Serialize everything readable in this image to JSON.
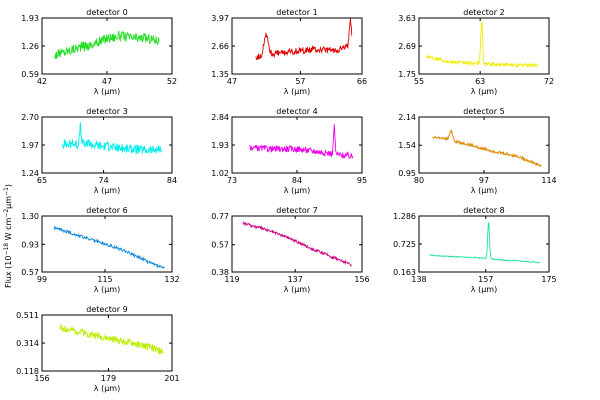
{
  "figure": {
    "ylabel_parts": [
      "Flux (10",
      "−18",
      " W cm",
      "−2",
      "μm",
      "−1",
      ")"
    ]
  },
  "chart_data": [
    {
      "type": "line",
      "title": "detector 0",
      "xlabel": "λ (μm)",
      "xlim": [
        42,
        52
      ],
      "ylim": [
        0.59,
        1.93
      ],
      "xticks": [
        "42",
        "47",
        "52"
      ],
      "yticks": [
        "0.59",
        "1.26",
        "1.93"
      ],
      "color": "#22dd22",
      "x": [
        43.0,
        44.0,
        45.0,
        46.0,
        47.0,
        48.0,
        49.0,
        50.0,
        51.0
      ],
      "y": [
        1.05,
        1.15,
        1.25,
        1.3,
        1.45,
        1.5,
        1.45,
        1.45,
        1.4
      ],
      "noise": 0.12,
      "peaks": []
    },
    {
      "type": "line",
      "title": "detector 1",
      "xlabel": "λ (μm)",
      "xlim": [
        47,
        66
      ],
      "ylim": [
        1.35,
        3.97
      ],
      "xticks": [
        "47",
        "57",
        "66"
      ],
      "yticks": [
        "1.35",
        "2.66",
        "3.97"
      ],
      "color": "#dd0000",
      "x": [
        50.5,
        53.0,
        56.0,
        59.0,
        62.0,
        64.5
      ],
      "y": [
        2.15,
        2.3,
        2.4,
        2.5,
        2.45,
        2.7
      ],
      "noise": 0.15,
      "peaks": [
        {
          "x": 52.0,
          "y": 3.25,
          "w": 0.3
        },
        {
          "x": 64.3,
          "y": 3.85,
          "w": 0.15
        }
      ]
    },
    {
      "type": "line",
      "title": "detector 2",
      "xlabel": "λ (μm)",
      "xlim": [
        55,
        72
      ],
      "ylim": [
        1.75,
        3.63
      ],
      "xticks": [
        "55",
        "63",
        "72"
      ],
      "yticks": [
        "1.75",
        "2.69",
        "3.63"
      ],
      "color": "#eeee00",
      "x": [
        56.0,
        59.0,
        63.0,
        67.0,
        70.5
      ],
      "y": [
        2.35,
        2.15,
        2.1,
        2.05,
        2.05
      ],
      "noise": 0.06,
      "peaks": [
        {
          "x": 63.2,
          "y": 3.55,
          "w": 0.12
        }
      ]
    },
    {
      "type": "line",
      "title": "detector 3",
      "xlabel": "λ (μm)",
      "xlim": [
        65,
        84
      ],
      "ylim": [
        1.24,
        2.7
      ],
      "xticks": [
        "65",
        "74",
        "84"
      ],
      "yticks": [
        "1.24",
        "1.97",
        "2.70"
      ],
      "color": "#00eeee",
      "x": [
        68.0,
        72.0,
        76.0,
        80.0,
        82.5
      ],
      "y": [
        2.0,
        2.0,
        1.9,
        1.85,
        1.85
      ],
      "noise": 0.12,
      "peaks": [
        {
          "x": 70.6,
          "y": 2.5,
          "w": 0.1
        }
      ]
    },
    {
      "type": "line",
      "title": "detector 4",
      "xlabel": "λ (μm)",
      "xlim": [
        73,
        95
      ],
      "ylim": [
        1.02,
        2.84
      ],
      "xticks": [
        "73",
        "84",
        "95"
      ],
      "yticks": [
        "1.02",
        "1.93",
        "2.84"
      ],
      "color": "#ee00ee",
      "x": [
        76.0,
        80.0,
        84.0,
        88.0,
        93.5
      ],
      "y": [
        1.85,
        1.8,
        1.8,
        1.7,
        1.55
      ],
      "noise": 0.1,
      "peaks": [
        {
          "x": 90.3,
          "y": 2.55,
          "w": 0.12
        }
      ]
    },
    {
      "type": "line",
      "title": "detector 5",
      "xlabel": "λ (μm)",
      "xlim": [
        80,
        114
      ],
      "ylim": [
        0.95,
        2.14
      ],
      "xticks": [
        "80",
        "97",
        "114"
      ],
      "yticks": [
        "0.95",
        "1.54",
        "2.14"
      ],
      "color": "#dd8800",
      "x": [
        83.5,
        88.0,
        93.0,
        100.0,
        106.0,
        112.0
      ],
      "y": [
        1.72,
        1.65,
        1.55,
        1.4,
        1.3,
        1.1
      ],
      "noise": 0.03,
      "peaks": [
        {
          "x": 88.4,
          "y": 1.85,
          "w": 0.4
        }
      ]
    },
    {
      "type": "line",
      "title": "detector 6",
      "xlabel": "λ (μm)",
      "xlim": [
        99,
        132
      ],
      "ylim": [
        0.57,
        1.3
      ],
      "xticks": [
        "99",
        "115",
        "132"
      ],
      "yticks": [
        "0.57",
        "0.93",
        "1.30"
      ],
      "color": "#1188dd",
      "x": [
        102.0,
        108.0,
        114.0,
        120.0,
        126.0,
        130.0
      ],
      "y": [
        1.15,
        1.05,
        0.95,
        0.85,
        0.7,
        0.62
      ],
      "noise": 0.02,
      "peaks": []
    },
    {
      "type": "line",
      "title": "detector 7",
      "xlabel": "λ (μm)",
      "xlim": [
        119,
        156
      ],
      "ylim": [
        0.38,
        0.77
      ],
      "xticks": [
        "119",
        "137",
        "156"
      ],
      "yticks": [
        "0.38",
        "0.57",
        "0.77"
      ],
      "color": "#cc0088",
      "x": [
        122.0,
        128.0,
        135.0,
        142.0,
        148.0,
        153.0
      ],
      "y": [
        0.72,
        0.68,
        0.62,
        0.54,
        0.48,
        0.43
      ],
      "noise": 0.01,
      "peaks": []
    },
    {
      "type": "line",
      "title": "detector 8",
      "xlabel": "λ (μm)",
      "xlim": [
        138,
        175
      ],
      "ylim": [
        0.163,
        1.286
      ],
      "xticks": [
        "138",
        "157",
        "175"
      ],
      "yticks": [
        "0.163",
        "0.725",
        "1.286"
      ],
      "color": "#22ddaa",
      "x": [
        141.0,
        148.0,
        155.0,
        162.0,
        168.0,
        172.5
      ],
      "y": [
        0.5,
        0.47,
        0.45,
        0.4,
        0.38,
        0.35
      ],
      "noise": 0.01,
      "peaks": [
        {
          "x": 157.8,
          "y": 1.18,
          "w": 0.25
        }
      ]
    },
    {
      "type": "line",
      "title": "detector 9",
      "xlabel": "λ (μm)",
      "xlim": [
        156,
        201
      ],
      "ylim": [
        0.118,
        0.511
      ],
      "xticks": [
        "156",
        "179",
        "201"
      ],
      "yticks": [
        "0.118",
        "0.314",
        "0.511"
      ],
      "color": "#bbee00",
      "x": [
        162.0,
        170.0,
        178.0,
        186.0,
        194.0,
        198.0
      ],
      "y": [
        0.42,
        0.39,
        0.35,
        0.32,
        0.28,
        0.25
      ],
      "noise": 0.025,
      "peaks": []
    }
  ]
}
